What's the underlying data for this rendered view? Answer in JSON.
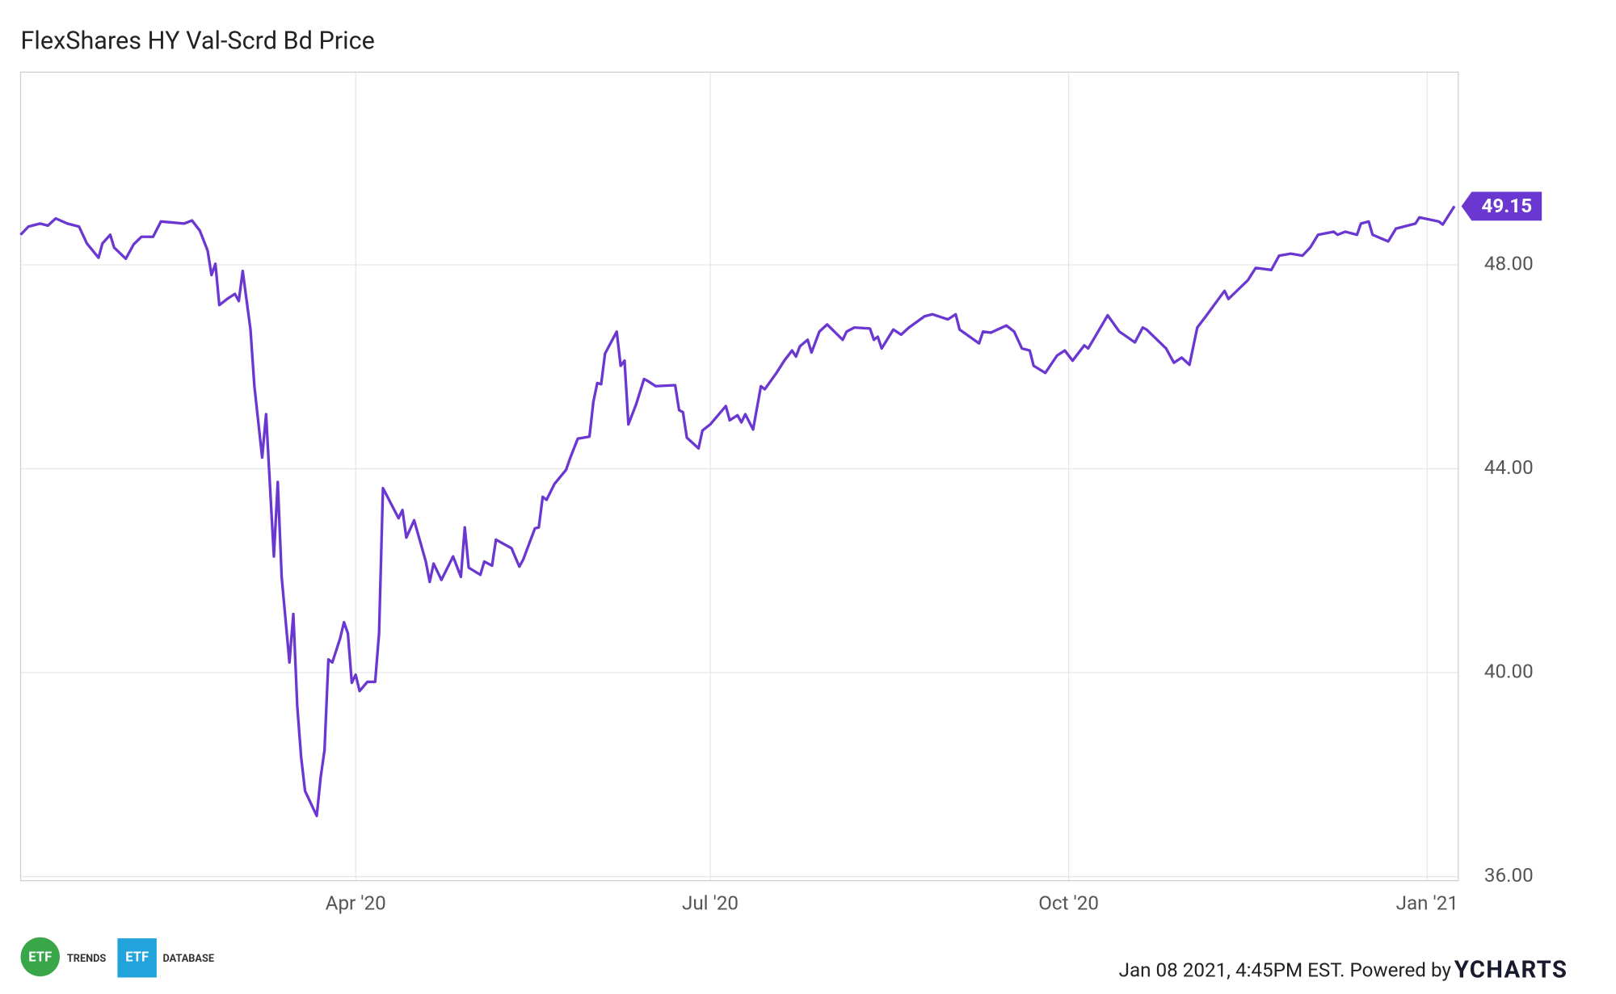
{
  "chart_data": {
    "type": "line",
    "title": "FlexShares HY Val-Scrd Bd Price",
    "x": [
      "2020-01-06",
      "2020-01-08",
      "2020-01-11",
      "2020-01-13",
      "2020-01-15",
      "2020-01-18",
      "2020-01-21",
      "2020-01-23",
      "2020-01-26",
      "2020-01-27",
      "2020-01-29",
      "2020-01-30",
      "2020-02-02",
      "2020-02-04",
      "2020-02-06",
      "2020-02-09",
      "2020-02-11",
      "2020-02-14",
      "2020-02-17",
      "2020-02-19",
      "2020-02-21",
      "2020-02-23",
      "2020-02-24",
      "2020-02-25",
      "2020-02-26",
      "2020-02-28",
      "2020-03-01",
      "2020-03-02",
      "2020-03-03",
      "2020-03-05",
      "2020-03-06",
      "2020-03-08",
      "2020-03-09",
      "2020-03-11",
      "2020-03-12",
      "2020-03-13",
      "2020-03-15",
      "2020-03-16",
      "2020-03-17",
      "2020-03-18",
      "2020-03-19",
      "2020-03-22",
      "2020-03-23",
      "2020-03-24",
      "2020-03-25",
      "2020-03-26",
      "2020-03-28",
      "2020-03-29",
      "2020-03-30",
      "2020-03-31",
      "2020-04-01",
      "2020-04-02",
      "2020-04-04",
      "2020-04-06",
      "2020-04-07",
      "2020-04-08",
      "2020-04-12",
      "2020-04-13",
      "2020-04-14",
      "2020-04-16",
      "2020-04-19",
      "2020-04-20",
      "2020-04-21",
      "2020-04-23",
      "2020-04-26",
      "2020-04-28",
      "2020-04-29",
      "2020-04-30",
      "2020-05-03",
      "2020-05-04",
      "2020-05-06",
      "2020-05-07",
      "2020-05-11",
      "2020-05-13",
      "2020-05-14",
      "2020-05-17",
      "2020-05-18",
      "2020-05-19",
      "2020-05-20",
      "2020-05-22",
      "2020-05-25",
      "2020-05-26",
      "2020-05-28",
      "2020-05-31",
      "2020-06-01",
      "2020-06-02",
      "2020-06-03",
      "2020-06-04",
      "2020-06-07",
      "2020-06-08",
      "2020-06-09",
      "2020-06-10",
      "2020-06-12",
      "2020-06-14",
      "2020-06-15",
      "2020-06-17",
      "2020-06-22",
      "2020-06-23",
      "2020-06-24",
      "2020-06-25",
      "2020-06-28",
      "2020-06-29",
      "2020-07-01",
      "2020-07-05",
      "2020-07-06",
      "2020-07-08",
      "2020-07-09",
      "2020-07-10",
      "2020-07-12",
      "2020-07-14",
      "2020-07-15",
      "2020-07-18",
      "2020-07-20",
      "2020-07-22",
      "2020-07-23",
      "2020-07-24",
      "2020-07-26",
      "2020-07-27",
      "2020-07-29",
      "2020-07-31",
      "2020-08-04",
      "2020-08-05",
      "2020-08-07",
      "2020-08-11",
      "2020-08-12",
      "2020-08-13",
      "2020-08-14",
      "2020-08-17",
      "2020-08-19",
      "2020-08-21",
      "2020-08-25",
      "2020-08-27",
      "2020-08-31",
      "2020-09-02",
      "2020-09-03",
      "2020-09-08",
      "2020-09-09",
      "2020-09-11",
      "2020-09-15",
      "2020-09-17",
      "2020-09-19",
      "2020-09-21",
      "2020-09-22",
      "2020-09-25",
      "2020-09-28",
      "2020-09-30",
      "2020-10-02",
      "2020-10-05",
      "2020-10-06",
      "2020-10-11",
      "2020-10-14",
      "2020-10-18",
      "2020-10-20",
      "2020-10-21",
      "2020-10-26",
      "2020-10-28",
      "2020-10-30",
      "2020-11-01",
      "2020-11-03",
      "2020-11-05",
      "2020-11-10",
      "2020-11-11",
      "2020-11-16",
      "2020-11-18",
      "2020-11-22",
      "2020-11-24",
      "2020-11-27",
      "2020-11-30",
      "2020-12-02",
      "2020-12-04",
      "2020-12-08",
      "2020-12-09",
      "2020-12-11",
      "2020-12-14",
      "2020-12-15",
      "2020-12-17",
      "2020-12-18",
      "2020-12-22",
      "2020-12-24",
      "2020-12-29",
      "2020-12-30",
      "2021-01-04",
      "2021-01-05",
      "2021-01-08"
    ],
    "series": [
      {
        "name": "FlexShares HY Val-Scrd Bd Price",
        "color": "#6b37d1",
        "values": [
          48.59,
          48.75,
          48.81,
          48.77,
          48.91,
          48.81,
          48.75,
          48.42,
          48.14,
          48.42,
          48.59,
          48.34,
          48.12,
          48.4,
          48.55,
          48.55,
          48.85,
          48.83,
          48.81,
          48.87,
          48.67,
          48.28,
          47.8,
          48.02,
          47.21,
          47.33,
          47.43,
          47.29,
          47.88,
          46.73,
          45.62,
          44.22,
          45.07,
          42.28,
          43.74,
          41.88,
          40.2,
          41.15,
          39.35,
          38.34,
          37.68,
          37.19,
          37.94,
          38.48,
          40.26,
          40.2,
          40.67,
          40.99,
          40.77,
          39.8,
          39.96,
          39.64,
          39.82,
          39.82,
          40.77,
          43.62,
          43.03,
          43.19,
          42.65,
          42.99,
          42.18,
          41.78,
          42.14,
          41.82,
          42.28,
          41.88,
          42.85,
          42.06,
          41.92,
          42.18,
          42.1,
          42.61,
          42.44,
          42.08,
          42.22,
          42.83,
          42.85,
          43.45,
          43.39,
          43.7,
          43.98,
          44.2,
          44.59,
          44.63,
          45.31,
          45.68,
          45.66,
          46.26,
          46.69,
          46.02,
          46.12,
          44.87,
          45.27,
          45.76,
          45.72,
          45.62,
          45.64,
          45.15,
          45.11,
          44.61,
          44.4,
          44.75,
          44.87,
          45.23,
          44.95,
          45.05,
          44.91,
          45.07,
          44.77,
          45.62,
          45.56,
          45.88,
          46.12,
          46.32,
          46.2,
          46.4,
          46.53,
          46.28,
          46.69,
          46.83,
          46.53,
          46.69,
          46.77,
          46.75,
          46.53,
          46.59,
          46.36,
          46.73,
          46.63,
          46.77,
          46.99,
          47.03,
          46.93,
          47.03,
          46.73,
          46.46,
          46.69,
          46.67,
          46.81,
          46.69,
          46.36,
          46.32,
          46.02,
          45.88,
          46.22,
          46.32,
          46.12,
          46.42,
          46.36,
          47.01,
          46.69,
          46.48,
          46.77,
          46.73,
          46.36,
          46.08,
          46.18,
          46.04,
          46.77,
          46.97,
          47.49,
          47.33,
          47.7,
          47.94,
          47.9,
          48.18,
          48.22,
          48.18,
          48.34,
          48.59,
          48.65,
          48.59,
          48.65,
          48.59,
          48.81,
          48.85,
          48.59,
          48.46,
          48.71,
          48.81,
          48.93,
          48.85,
          48.79,
          49.15
        ]
      }
    ],
    "xlim": [
      "2020-01-06",
      "2021-01-09"
    ],
    "xticks": [
      {
        "value": "2020-04-01",
        "label": "Apr '20"
      },
      {
        "value": "2020-07-01",
        "label": "Jul '20"
      },
      {
        "value": "2020-10-01",
        "label": "Oct '20"
      },
      {
        "value": "2021-01-01",
        "label": "Jan '21"
      }
    ],
    "ylim": [
      35.92,
      51.78
    ],
    "yticks": [
      {
        "value": 36,
        "label": "36.00"
      },
      {
        "value": 40,
        "label": "40.00"
      },
      {
        "value": 44,
        "label": "44.00"
      },
      {
        "value": 48,
        "label": "48.00"
      }
    ],
    "grid": true
  },
  "footer": {
    "logo_1_mark": "ETF",
    "logo_1_text": "TRENDS",
    "logo_2_mark": "ETF",
    "logo_2_text": "DATABASE",
    "timestamp": "Jan 08 2021, 4:45PM EST. Powered by",
    "brand": "YCHARTS"
  }
}
